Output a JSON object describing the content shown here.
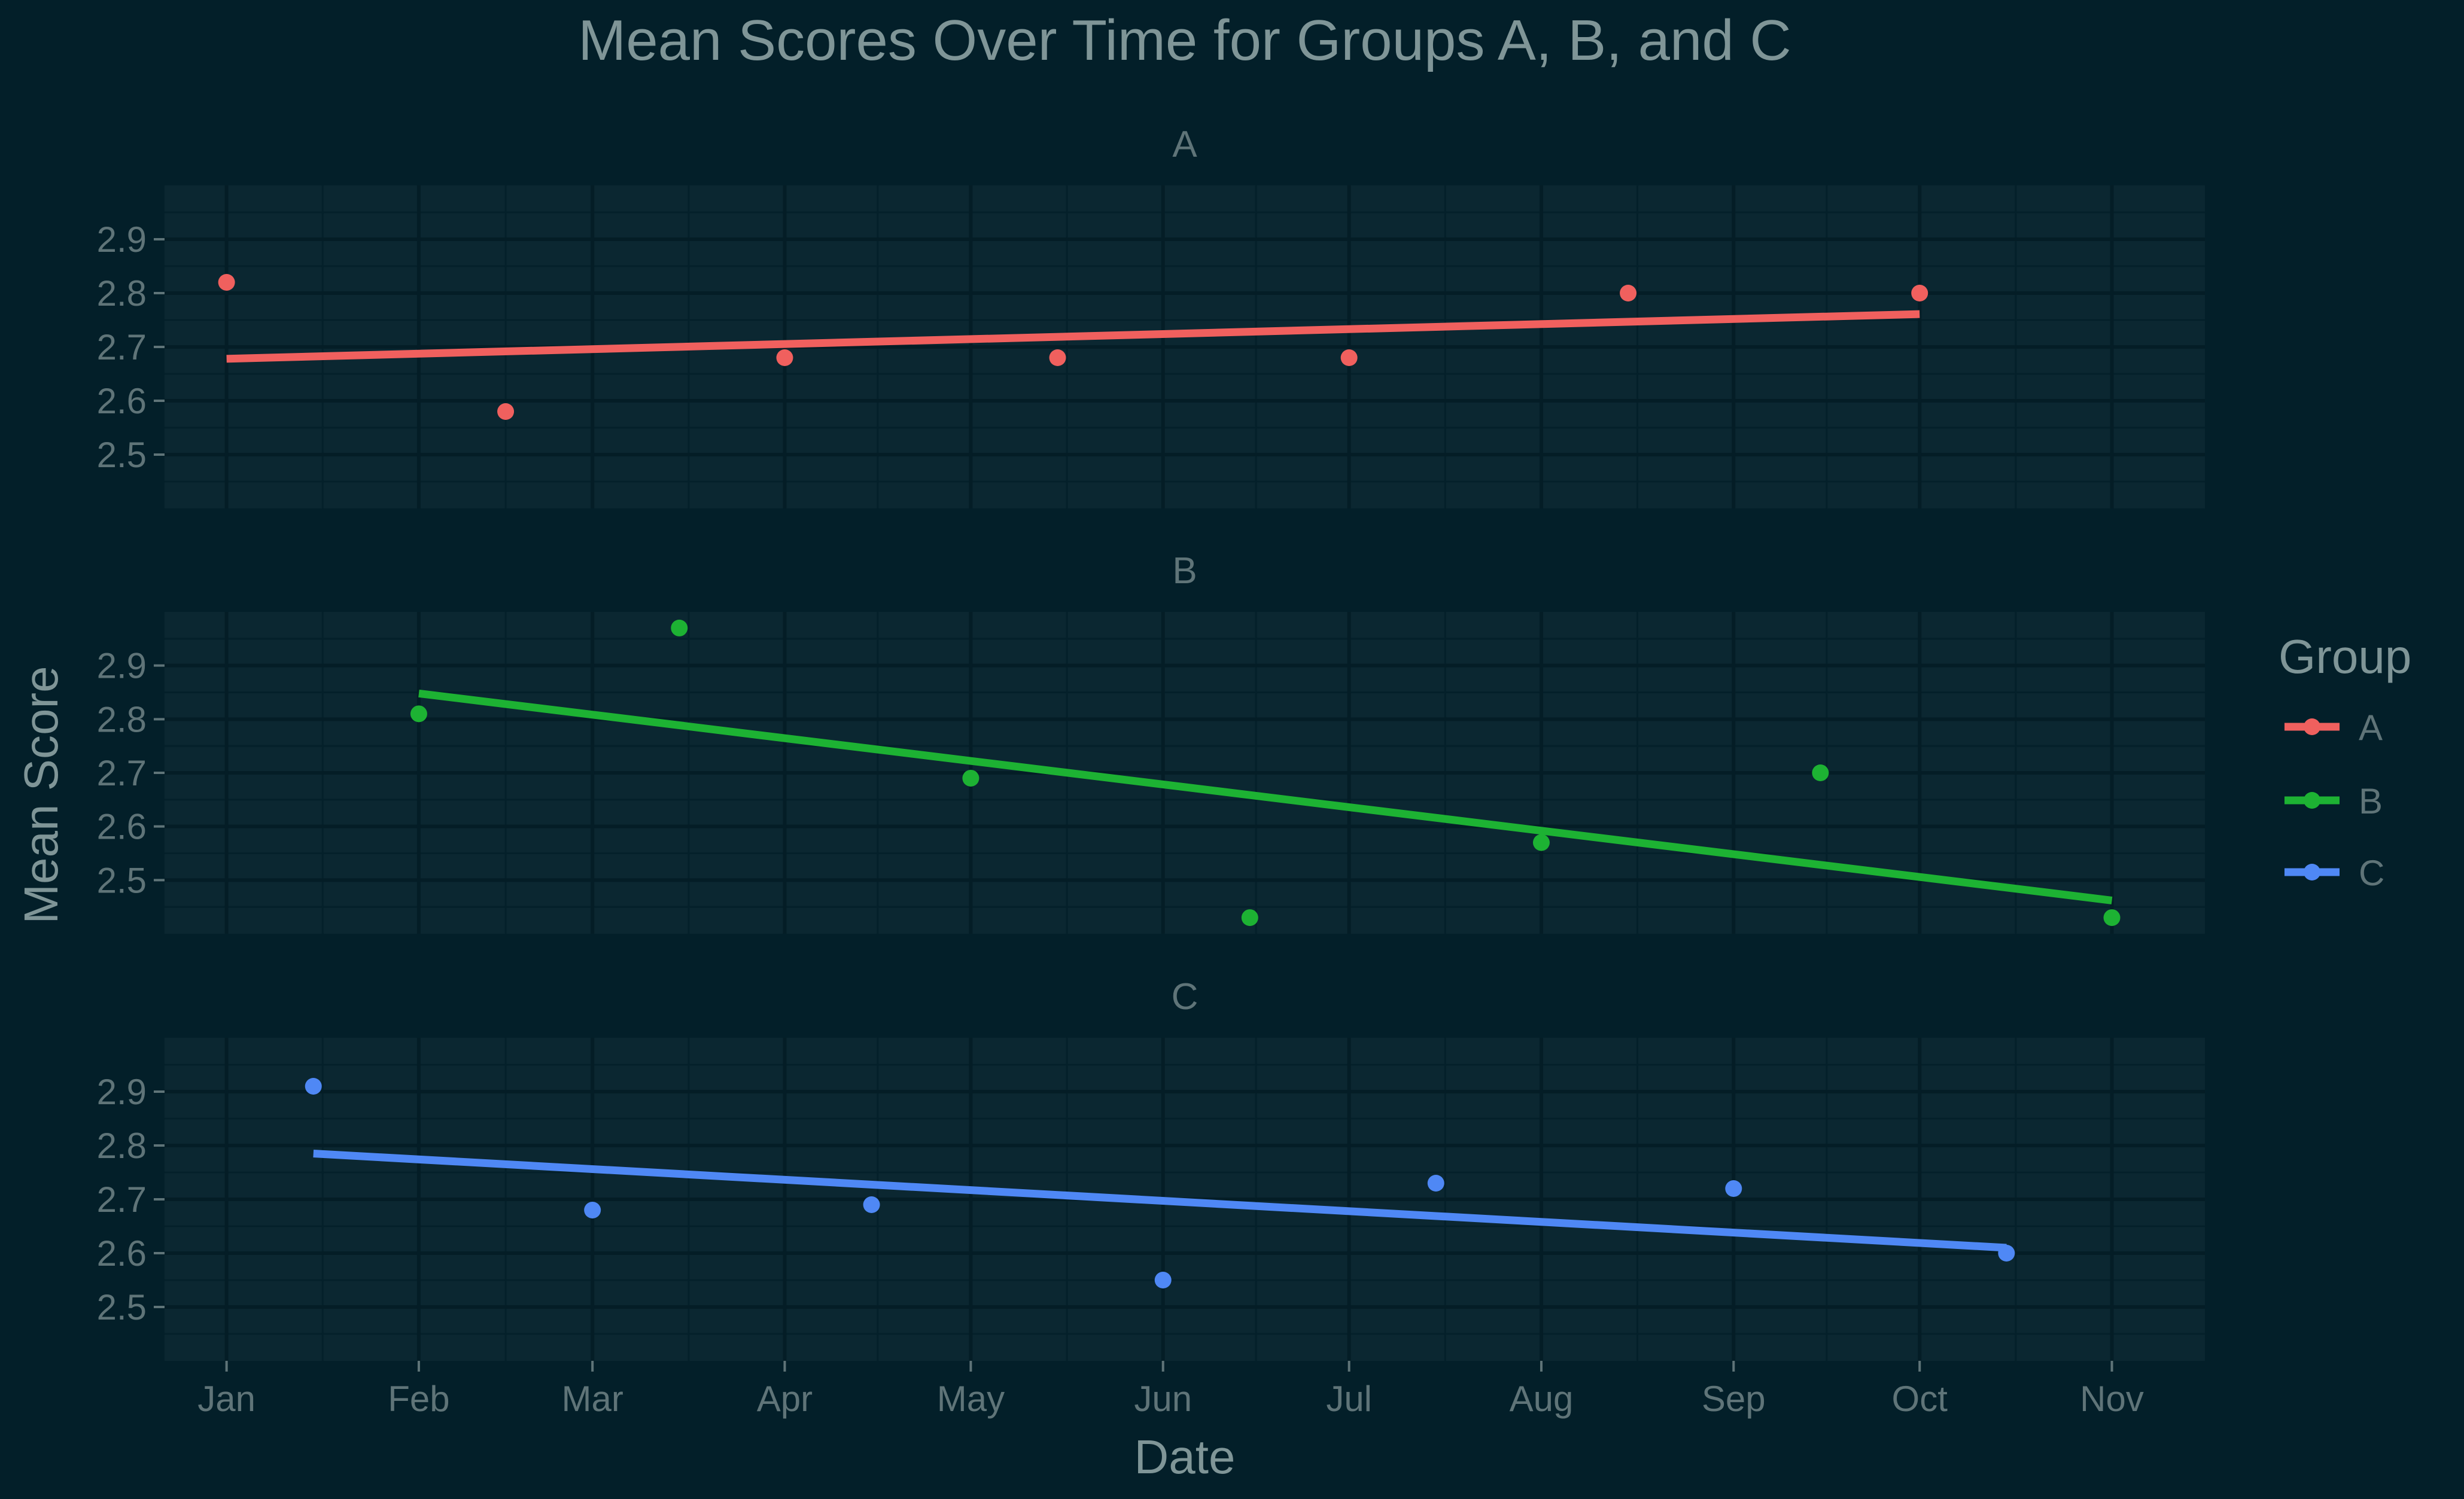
{
  "chart_data": {
    "type": "scatter",
    "title": "Mean Scores Over Time for Groups A, B, and C",
    "xlabel": "Date",
    "ylabel": "Mean Score",
    "x_ticks": [
      "Jan",
      "Feb",
      "Mar",
      "Apr",
      "May",
      "Jun",
      "Jul",
      "Aug",
      "Sep",
      "Oct",
      "Nov"
    ],
    "y_ticks": [
      2.5,
      2.6,
      2.7,
      2.8,
      2.9
    ],
    "ylim": [
      2.4,
      3.0
    ],
    "xlim": [
      "Dec 22",
      "Nov 16"
    ],
    "grid": true,
    "facets": true,
    "legend": {
      "title": "Group",
      "position": "right"
    },
    "series": [
      {
        "name": "A",
        "color": "#f0605e",
        "points": [
          {
            "date": "Jan 1",
            "value": 2.82
          },
          {
            "date": "Feb 15",
            "value": 2.58
          },
          {
            "date": "Apr 1",
            "value": 2.68
          },
          {
            "date": "May 15",
            "value": 2.68
          },
          {
            "date": "Jul 1",
            "value": 2.68
          },
          {
            "date": "Aug 15",
            "value": 2.8
          },
          {
            "date": "Oct 1",
            "value": 2.8
          }
        ],
        "trend": [
          {
            "date": "Jan 1",
            "value": 2.678
          },
          {
            "date": "Oct 1",
            "value": 2.761
          }
        ]
      },
      {
        "name": "B",
        "color": "#1db233",
        "points": [
          {
            "date": "Feb 1",
            "value": 2.81
          },
          {
            "date": "Mar 15",
            "value": 2.97
          },
          {
            "date": "May 1",
            "value": 2.69
          },
          {
            "date": "Jun 15",
            "value": 2.43
          },
          {
            "date": "Aug 1",
            "value": 2.57
          },
          {
            "date": "Sep 15",
            "value": 2.7
          },
          {
            "date": "Nov 1",
            "value": 2.43
          }
        ],
        "trend": [
          {
            "date": "Feb 1",
            "value": 2.848
          },
          {
            "date": "Nov 1",
            "value": 2.462
          }
        ]
      },
      {
        "name": "C",
        "color": "#4f88f5",
        "points": [
          {
            "date": "Jan 15",
            "value": 2.91
          },
          {
            "date": "Mar 1",
            "value": 2.68
          },
          {
            "date": "Apr 15",
            "value": 2.69
          },
          {
            "date": "Jun 1",
            "value": 2.55
          },
          {
            "date": "Jul 15",
            "value": 2.73
          },
          {
            "date": "Sep 1",
            "value": 2.72
          },
          {
            "date": "Oct 15",
            "value": 2.6
          }
        ],
        "trend": [
          {
            "date": "Jan 15",
            "value": 2.785
          },
          {
            "date": "Oct 15",
            "value": 2.61
          }
        ]
      }
    ]
  }
}
